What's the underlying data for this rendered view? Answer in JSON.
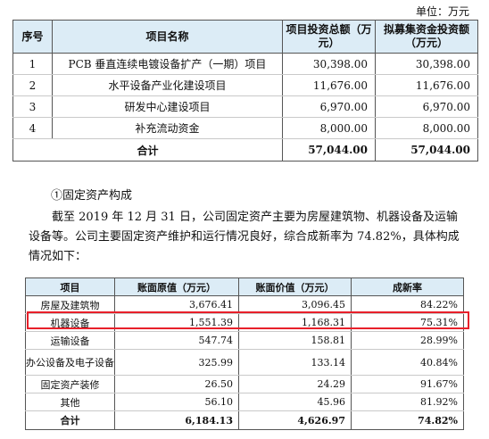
{
  "unit_label": "单位：万元",
  "table1": {
    "headers": [
      "序号",
      "项目名称",
      "项目投资总额（万元）",
      "拟募集资金投资额（万元）"
    ],
    "rows": [
      {
        "no": "1",
        "name": "PCB 垂直连续电镀设备扩产（一期）项目",
        "total": "30,398.00",
        "raised": "30,398.00"
      },
      {
        "no": "2",
        "name": "水平设备产业化建设项目",
        "total": "11,676.00",
        "raised": "11,676.00"
      },
      {
        "no": "3",
        "name": "研发中心建设项目",
        "total": "6,970.00",
        "raised": "6,970.00"
      },
      {
        "no": "4",
        "name": "补充流动资金",
        "total": "8,000.00",
        "raised": "8,000.00"
      }
    ],
    "total": {
      "label": "合计",
      "total": "57,044.00",
      "raised": "57,044.00"
    }
  },
  "subheading": "①固定资产构成",
  "paragraph": "截至 2019 年 12 月 31 日，公司固定资产主要为房屋建筑物、机器设备及运输设备等。公司主要固定资产维护和运行情况良好，综合成新率为 74.82%，具体构成情况如下：",
  "table2": {
    "headers": [
      "项目",
      "账面原值（万元）",
      "账面价值（万元）",
      "成新率"
    ],
    "rows": [
      {
        "item": "房屋及建筑物",
        "orig": "3,676.41",
        "book": "3,096.45",
        "rate": "84.22%"
      },
      {
        "item": "机器设备",
        "orig": "1,551.39",
        "book": "1,168.31",
        "rate": "75.31%"
      },
      {
        "item": "运输设备",
        "orig": "547.74",
        "book": "158.81",
        "rate": "28.99%"
      },
      {
        "item": "办公设备及电子设备",
        "orig": "325.99",
        "book": "133.14",
        "rate": "40.84%"
      },
      {
        "item": "固定资产装修",
        "orig": "26.50",
        "book": "24.29",
        "rate": "91.67%"
      },
      {
        "item": "其他",
        "orig": "56.10",
        "book": "45.96",
        "rate": "81.92%"
      }
    ],
    "total": {
      "label": "合计",
      "orig": "6,184.13",
      "book": "4,626.97",
      "rate": "74.82%"
    }
  },
  "colors": {
    "header_bg": "#dcecf6",
    "highlight_border": "#e8202a"
  }
}
